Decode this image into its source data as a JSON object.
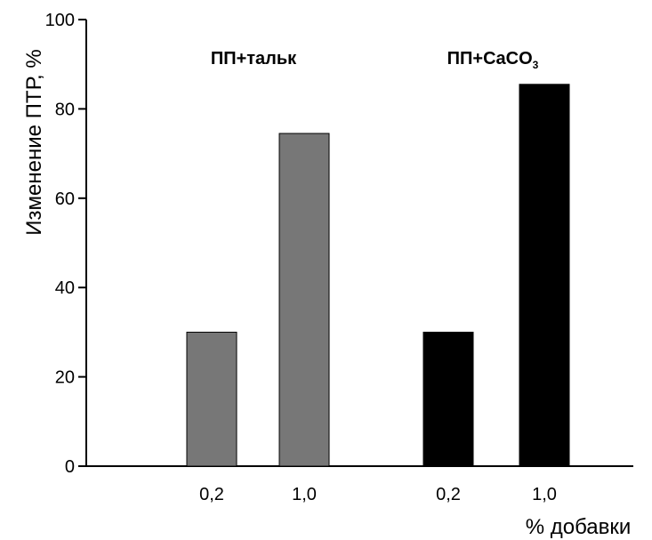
{
  "chart_data": {
    "type": "bar",
    "title": "",
    "ylabel": "Изменение ПТР, %",
    "xlabel": "% добавки",
    "ylim": [
      0,
      100
    ],
    "yticks": [
      0,
      20,
      40,
      60,
      80,
      100
    ],
    "grid": false,
    "groups": [
      {
        "label": "ПП+тальк",
        "color": "#777777",
        "categories": [
          "0,2",
          "1,0"
        ],
        "values": [
          30,
          74.5
        ]
      },
      {
        "label_main": "ПП+CaCO",
        "label_sub": "3",
        "color": "#000000",
        "categories": [
          "0,2",
          "1,0"
        ],
        "values": [
          30,
          85.5
        ]
      }
    ]
  }
}
